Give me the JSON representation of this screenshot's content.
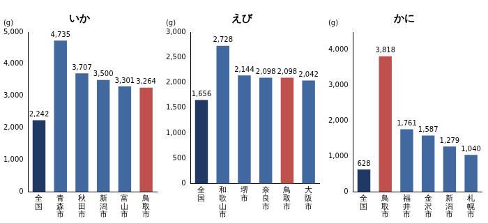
{
  "chart_data": [
    {
      "type": "bar",
      "title": "いか",
      "y_label": "(g)",
      "categories": [
        "全国",
        "青森市",
        "秋田市",
        "新潟市",
        "富山市",
        "鳥取市"
      ],
      "values": [
        2242,
        4735,
        3707,
        3500,
        3301,
        3264
      ],
      "value_labels": [
        "2,242",
        "4,735",
        "3,707",
        "3,500",
        "3,301",
        "3,264"
      ],
      "colors": [
        "#1f3864",
        "#41689f",
        "#41689f",
        "#41689f",
        "#41689f",
        "#c0504d"
      ],
      "ylim": [
        0,
        5000
      ],
      "yticks": [
        0,
        {
          "value": 1000,
          "label": "1,000"
        },
        {
          "value": 2000,
          "label": "2,000"
        },
        {
          "value": 3000,
          "label": "3,000"
        },
        {
          "value": 4000,
          "label": "4,000"
        },
        {
          "value": 5000,
          "label": "5,000"
        }
      ],
      "grid": false,
      "data_labels": true
    },
    {
      "type": "bar",
      "title": "えび",
      "y_label": "(g)",
      "categories": [
        "全国",
        "和歌山市",
        "堺市",
        "奈良市",
        "鳥取市",
        "大阪市"
      ],
      "values": [
        1656,
        2728,
        2144,
        2098,
        2098,
        2042
      ],
      "value_labels": [
        "1,656",
        "2,728",
        "2,144",
        "2,098",
        "2,098",
        "2,042"
      ],
      "colors": [
        "#1f3864",
        "#41689f",
        "#41689f",
        "#41689f",
        "#c0504d",
        "#41689f"
      ],
      "ylim": [
        0,
        3000
      ],
      "yticks": [
        0,
        500,
        {
          "value": 1000,
          "label": "1,000"
        },
        {
          "value": 1500,
          "label": "1,500"
        },
        {
          "value": 2000,
          "label": "2,000"
        },
        {
          "value": 2500,
          "label": "2,500"
        },
        {
          "value": 3000,
          "label": "3,000"
        }
      ],
      "grid": false,
      "data_labels": true
    },
    {
      "type": "bar",
      "title": "かに",
      "y_label": "(g)",
      "categories": [
        "全国",
        "鳥取市",
        "福井市",
        "金沢市",
        "新潟市",
        "札幌市"
      ],
      "values": [
        628,
        3818,
        1761,
        1587,
        1279,
        1040
      ],
      "value_labels": [
        "628",
        "3,818",
        "1,761",
        "1,587",
        "1,279",
        "1,040"
      ],
      "colors": [
        "#1f3864",
        "#c0504d",
        "#41689f",
        "#41689f",
        "#41689f",
        "#41689f"
      ],
      "ylim": [
        0,
        4500
      ],
      "yticks": [
        0,
        {
          "value": 1000,
          "label": "1,000"
        },
        {
          "value": 2000,
          "label": "2,000"
        },
        {
          "value": 3000,
          "label": "3,000"
        },
        {
          "value": 4000,
          "label": "4,000"
        }
      ],
      "grid": false,
      "data_labels": true
    }
  ]
}
